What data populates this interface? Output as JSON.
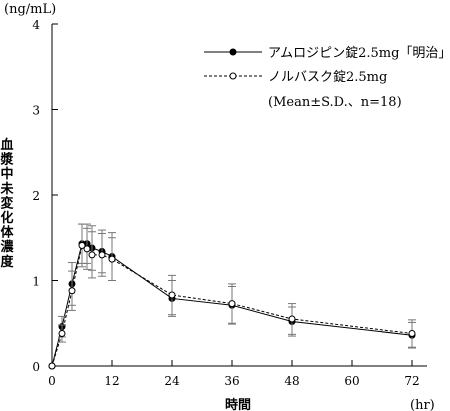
{
  "chart_data": {
    "type": "line",
    "y_unit": "(ng/mL)",
    "x_unit": "(hr)",
    "xlabel": "時間",
    "ylabel": "血漿中未変化体濃度",
    "xlim": [
      0,
      75
    ],
    "ylim": [
      0,
      4
    ],
    "x_ticks": [
      0,
      12,
      24,
      36,
      48,
      60,
      72
    ],
    "y_ticks": [
      0,
      1,
      2,
      3,
      4
    ],
    "legend_position": "top-right",
    "legend_note": "(Mean±S.D.、n=18)",
    "series": [
      {
        "name": "アムロジピン錠2.5mg「明治」",
        "marker": "filled-circle",
        "line": "solid",
        "x": [
          0,
          2,
          4,
          6,
          7,
          8,
          10,
          12,
          24,
          36,
          48,
          72
        ],
        "y": [
          0,
          0.46,
          0.96,
          1.43,
          1.43,
          1.38,
          1.34,
          1.28,
          0.79,
          0.71,
          0.52,
          0.36
        ],
        "sd": [
          0,
          0.12,
          0.25,
          0.23,
          0.23,
          0.26,
          0.25,
          0.28,
          0.21,
          0.22,
          0.17,
          0.15
        ]
      },
      {
        "name": "ノルバスク錠2.5mg",
        "marker": "open-circle",
        "line": "dashed",
        "x": [
          0,
          2,
          4,
          6,
          7,
          8,
          10,
          12,
          24,
          36,
          48,
          72
        ],
        "y": [
          0,
          0.38,
          0.88,
          1.41,
          1.37,
          1.3,
          1.3,
          1.25,
          0.83,
          0.73,
          0.55,
          0.38
        ],
        "sd": [
          0,
          0.1,
          0.23,
          0.25,
          0.24,
          0.27,
          0.25,
          0.25,
          0.23,
          0.23,
          0.18,
          0.16
        ]
      }
    ]
  }
}
